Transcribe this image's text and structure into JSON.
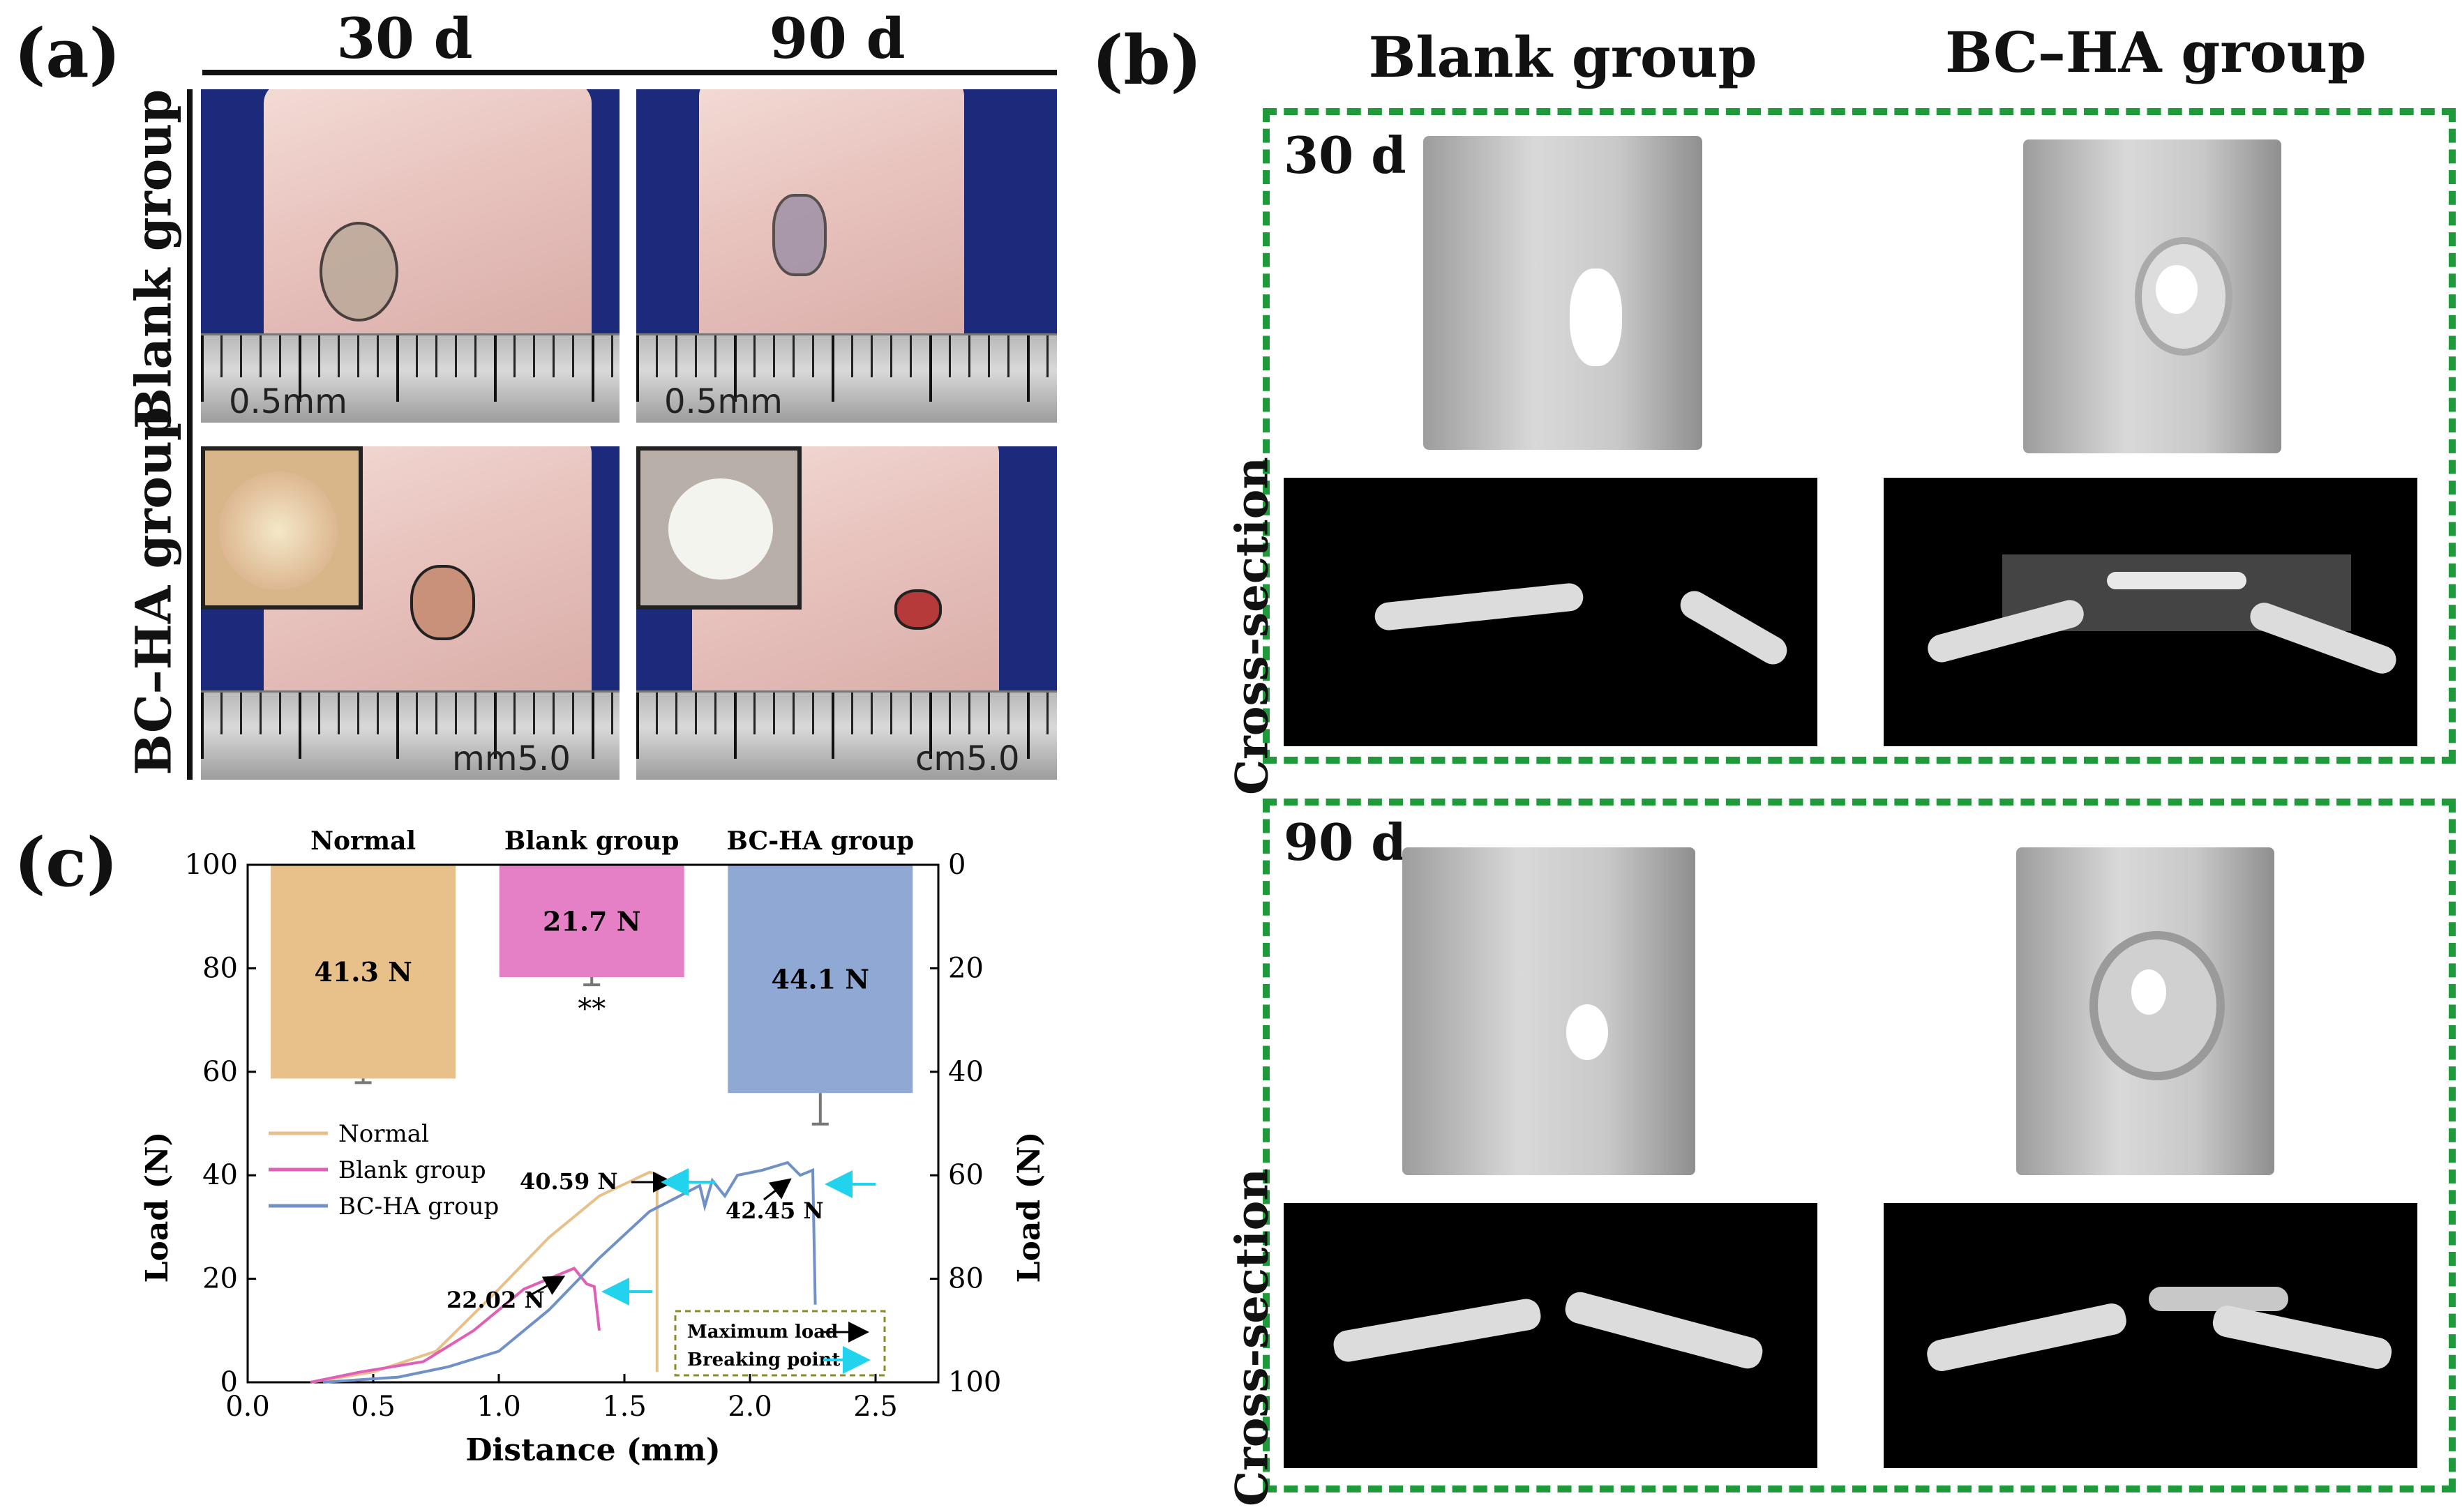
{
  "panel_a": {
    "label": "(a)",
    "col_headers": [
      "30 d",
      "90 d"
    ],
    "row_headers": [
      "Blank group",
      "BC–HA group"
    ],
    "ruler_texts": [
      "0.5mm",
      "0.5mm",
      "mm5.0",
      "cm5.0"
    ]
  },
  "panel_b": {
    "label": "(b)",
    "col_headers": [
      "Blank group",
      "BC–HA group"
    ],
    "time_labels": [
      "30 d",
      "90 d"
    ],
    "cross_section_label": "Cross-section"
  },
  "panel_c": {
    "label": "(c)",
    "chart_data": {
      "type": "bar+line",
      "bar_chart": {
        "categories": [
          "Normal",
          "Blank group",
          "BC-HA group"
        ],
        "values": [
          41.3,
          21.7,
          44.1
        ],
        "value_labels": [
          "41.3 N",
          "21.7 N",
          "44.1 N"
        ],
        "error": [
          0.8,
          1.5,
          6.0
        ],
        "colors": [
          "#e8c08a",
          "#e680c6",
          "#8fa8d4"
        ],
        "right_axis": {
          "label": "Load (N)",
          "range": [
            0,
            100
          ],
          "inverted": true,
          "ticks": [
            "0",
            "20",
            "40",
            "60",
            "80",
            "100"
          ]
        },
        "significance": {
          "category": "Blank group",
          "text": "**"
        }
      },
      "line_chart": {
        "xlabel": "Distance (mm)",
        "ylabel": "Load (N)",
        "xlim": [
          0,
          2.75
        ],
        "ylim": [
          0,
          100
        ],
        "xticks": [
          "0.0",
          "0.5",
          "1.0",
          "1.5",
          "2.0",
          "2.5"
        ],
        "yticks": [
          "0",
          "20",
          "40",
          "60",
          "80",
          "100"
        ],
        "series": [
          {
            "name": "Normal",
            "color": "#e8c08a",
            "points": [
              [
                0.25,
                0
              ],
              [
                0.5,
                2
              ],
              [
                0.75,
                6
              ],
              [
                1.0,
                18
              ],
              [
                1.2,
                28
              ],
              [
                1.4,
                36
              ],
              [
                1.6,
                40.59
              ],
              [
                1.63,
                40.2
              ],
              [
                1.63,
                2
              ]
            ]
          },
          {
            "name": "Blank group",
            "color": "#e060b8",
            "points": [
              [
                0.25,
                0
              ],
              [
                0.45,
                2
              ],
              [
                0.7,
                4
              ],
              [
                0.9,
                10
              ],
              [
                1.1,
                18
              ],
              [
                1.3,
                22.02
              ],
              [
                1.35,
                19
              ],
              [
                1.38,
                18.5
              ],
              [
                1.4,
                10
              ]
            ]
          },
          {
            "name": "BC-HA group",
            "color": "#7090c8",
            "points": [
              [
                0.3,
                0
              ],
              [
                0.6,
                1
              ],
              [
                0.8,
                3
              ],
              [
                1.0,
                6
              ],
              [
                1.2,
                14
              ],
              [
                1.4,
                24
              ],
              [
                1.6,
                33
              ],
              [
                1.8,
                38
              ],
              [
                1.82,
                34
              ],
              [
                1.85,
                39
              ],
              [
                1.9,
                36
              ],
              [
                1.95,
                40
              ],
              [
                2.05,
                41
              ],
              [
                2.15,
                42.45
              ],
              [
                2.2,
                40
              ],
              [
                2.25,
                41
              ],
              [
                2.26,
                15
              ]
            ]
          }
        ],
        "annotations": [
          "40.59 N",
          "22.02 N",
          "42.45 N"
        ],
        "legend_box": [
          "Maximum load",
          "Breaking point"
        ]
      }
    }
  }
}
